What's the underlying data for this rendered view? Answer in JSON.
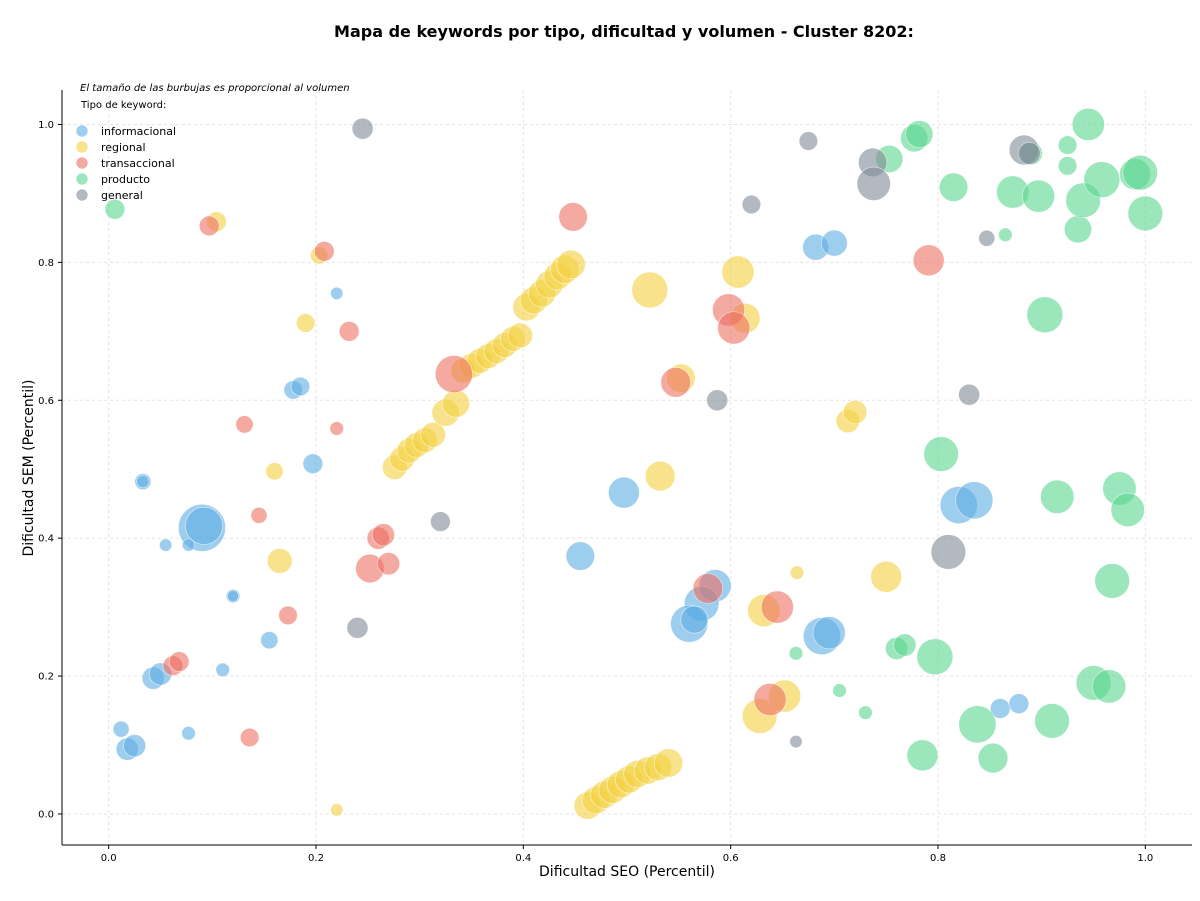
{
  "chart_data": {
    "type": "scatter",
    "title": "Mapa de keywords por tipo, dificultad y volumen - Cluster 8202:",
    "xlabel": "Dificultad SEO (Percentil)",
    "ylabel": "Dificultad SEM (Percentil)",
    "note": "El tamaño de las burbujas es proporcional al volumen",
    "legend_title": "Tipo de keyword:",
    "legend_position": "top-left",
    "grid": true,
    "xlim": [
      -0.045,
      1.045
    ],
    "ylim": [
      -0.045,
      1.05
    ],
    "xticks": [
      0.0,
      0.2,
      0.4,
      0.6,
      0.8,
      1.0
    ],
    "yticks": [
      0.0,
      0.2,
      0.4,
      0.6,
      0.8,
      1.0
    ],
    "xtick_labels": [
      "0.0",
      "0.2",
      "0.4",
      "0.6",
      "0.8",
      "1.0"
    ],
    "ytick_labels": [
      "0.0",
      "0.2",
      "0.4",
      "0.6",
      "0.8",
      "1.0"
    ],
    "size_unit": "volumen (relativo)",
    "series": [
      {
        "name": "informacional",
        "color": "#5DADE2",
        "points": [
          [
            0.09,
            0.415,
            3.8
          ],
          [
            0.092,
            0.418,
            3.0
          ],
          [
            0.033,
            0.482,
            1.3
          ],
          [
            0.033,
            0.482,
            1.0
          ],
          [
            0.055,
            0.39,
            1.0
          ],
          [
            0.077,
            0.39,
            1.0
          ],
          [
            0.12,
            0.316,
            1.1
          ],
          [
            0.12,
            0.316,
            0.9
          ],
          [
            0.178,
            0.615,
            1.5
          ],
          [
            0.185,
            0.62,
            1.5
          ],
          [
            0.197,
            0.508,
            1.6
          ],
          [
            0.22,
            0.755,
            1.0
          ],
          [
            0.155,
            0.252,
            1.4
          ],
          [
            0.11,
            0.209,
            1.1
          ],
          [
            0.043,
            0.197,
            1.8
          ],
          [
            0.05,
            0.203,
            1.8
          ],
          [
            0.012,
            0.123,
            1.3
          ],
          [
            0.018,
            0.094,
            1.8
          ],
          [
            0.025,
            0.099,
            1.8
          ],
          [
            0.077,
            0.117,
            1.1
          ],
          [
            0.455,
            0.374,
            2.3
          ],
          [
            0.497,
            0.466,
            2.5
          ],
          [
            0.585,
            0.331,
            2.6
          ],
          [
            0.572,
            0.305,
            2.8
          ],
          [
            0.56,
            0.276,
            3.0
          ],
          [
            0.565,
            0.282,
            2.2
          ],
          [
            0.688,
            0.258,
            3.0
          ],
          [
            0.695,
            0.263,
            2.6
          ],
          [
            0.682,
            0.822,
            2.1
          ],
          [
            0.7,
            0.828,
            2.1
          ],
          [
            0.82,
            0.448,
            3.0
          ],
          [
            0.835,
            0.455,
            3.0
          ],
          [
            0.86,
            0.153,
            1.6
          ],
          [
            0.878,
            0.16,
            1.6
          ]
        ]
      },
      {
        "name": "regional",
        "color": "#F4D03F",
        "points": [
          [
            0.104,
            0.859,
            1.6
          ],
          [
            0.19,
            0.712,
            1.5
          ],
          [
            0.203,
            0.81,
            1.4
          ],
          [
            0.16,
            0.497,
            1.4
          ],
          [
            0.165,
            0.367,
            2.0
          ],
          [
            0.22,
            0.006,
            1.0
          ],
          [
            0.276,
            0.503,
            2.0
          ],
          [
            0.283,
            0.515,
            2.0
          ],
          [
            0.29,
            0.527,
            2.0
          ],
          [
            0.297,
            0.535,
            2.0
          ],
          [
            0.305,
            0.542,
            2.0
          ],
          [
            0.313,
            0.55,
            2.0
          ],
          [
            0.325,
            0.582,
            2.2
          ],
          [
            0.335,
            0.595,
            2.2
          ],
          [
            0.342,
            0.643,
            2.0
          ],
          [
            0.35,
            0.65,
            2.0
          ],
          [
            0.358,
            0.657,
            2.0
          ],
          [
            0.366,
            0.664,
            2.0
          ],
          [
            0.374,
            0.671,
            2.0
          ],
          [
            0.382,
            0.68,
            2.0
          ],
          [
            0.39,
            0.689,
            2.0
          ],
          [
            0.397,
            0.694,
            2.0
          ],
          [
            0.403,
            0.735,
            2.2
          ],
          [
            0.41,
            0.745,
            2.2
          ],
          [
            0.418,
            0.755,
            2.2
          ],
          [
            0.425,
            0.768,
            2.2
          ],
          [
            0.433,
            0.78,
            2.2
          ],
          [
            0.44,
            0.79,
            2.3
          ],
          [
            0.446,
            0.797,
            2.3
          ],
          [
            0.462,
            0.012,
            2.2
          ],
          [
            0.47,
            0.02,
            2.2
          ],
          [
            0.478,
            0.028,
            2.2
          ],
          [
            0.486,
            0.035,
            2.2
          ],
          [
            0.494,
            0.043,
            2.2
          ],
          [
            0.502,
            0.05,
            2.2
          ],
          [
            0.51,
            0.058,
            2.2
          ],
          [
            0.52,
            0.063,
            2.2
          ],
          [
            0.53,
            0.068,
            2.2
          ],
          [
            0.54,
            0.074,
            2.3
          ],
          [
            0.522,
            0.76,
            2.9
          ],
          [
            0.552,
            0.632,
            2.3
          ],
          [
            0.532,
            0.49,
            2.4
          ],
          [
            0.607,
            0.786,
            2.6
          ],
          [
            0.614,
            0.719,
            2.4
          ],
          [
            0.628,
            0.142,
            2.8
          ],
          [
            0.632,
            0.295,
            2.6
          ],
          [
            0.652,
            0.171,
            2.6
          ],
          [
            0.664,
            0.35,
            1.1
          ],
          [
            0.713,
            0.57,
            1.9
          ],
          [
            0.72,
            0.583,
            1.9
          ],
          [
            0.75,
            0.344,
            2.5
          ]
        ]
      },
      {
        "name": "transaccional",
        "color": "#EC7063",
        "points": [
          [
            0.097,
            0.853,
            1.6
          ],
          [
            0.208,
            0.816,
            1.6
          ],
          [
            0.232,
            0.7,
            1.6
          ],
          [
            0.131,
            0.565,
            1.4
          ],
          [
            0.22,
            0.559,
            1.1
          ],
          [
            0.145,
            0.433,
            1.3
          ],
          [
            0.26,
            0.4,
            1.8
          ],
          [
            0.265,
            0.405,
            1.8
          ],
          [
            0.252,
            0.356,
            2.3
          ],
          [
            0.27,
            0.363,
            1.8
          ],
          [
            0.173,
            0.288,
            1.5
          ],
          [
            0.062,
            0.215,
            1.6
          ],
          [
            0.068,
            0.221,
            1.6
          ],
          [
            0.136,
            0.111,
            1.5
          ],
          [
            0.333,
            0.638,
            3.0
          ],
          [
            0.448,
            0.866,
            2.3
          ],
          [
            0.547,
            0.626,
            2.4
          ],
          [
            0.598,
            0.731,
            2.6
          ],
          [
            0.603,
            0.705,
            2.6
          ],
          [
            0.578,
            0.327,
            2.4
          ],
          [
            0.638,
            0.166,
            2.6
          ],
          [
            0.645,
            0.3,
            2.6
          ],
          [
            0.791,
            0.803,
            2.5
          ]
        ]
      },
      {
        "name": "producto",
        "color": "#58D68D",
        "points": [
          [
            0.006,
            0.877,
            1.6
          ],
          [
            0.663,
            0.233,
            1.1
          ],
          [
            0.705,
            0.179,
            1.1
          ],
          [
            0.73,
            0.147,
            1.1
          ],
          [
            0.76,
            0.24,
            1.8
          ],
          [
            0.768,
            0.245,
            1.8
          ],
          [
            0.785,
            0.085,
            2.5
          ],
          [
            0.797,
            0.228,
            2.9
          ],
          [
            0.803,
            0.522,
            2.8
          ],
          [
            0.838,
            0.13,
            3.0
          ],
          [
            0.853,
            0.081,
            2.4
          ],
          [
            0.777,
            0.98,
            2.2
          ],
          [
            0.782,
            0.986,
            2.2
          ],
          [
            0.753,
            0.95,
            2.2
          ],
          [
            0.815,
            0.909,
            2.3
          ],
          [
            0.865,
            0.84,
            1.1
          ],
          [
            0.872,
            0.902,
            2.6
          ],
          [
            0.897,
            0.896,
            2.6
          ],
          [
            0.89,
            0.958,
            1.8
          ],
          [
            0.925,
            0.97,
            1.5
          ],
          [
            0.925,
            0.94,
            1.5
          ],
          [
            0.903,
            0.724,
            2.9
          ],
          [
            0.91,
            0.135,
            2.8
          ],
          [
            0.915,
            0.46,
            2.7
          ],
          [
            0.935,
            0.848,
            2.2
          ],
          [
            0.94,
            0.89,
            2.8
          ],
          [
            0.945,
            1.0,
            2.6
          ],
          [
            0.958,
            0.92,
            2.9
          ],
          [
            0.968,
            0.338,
            2.8
          ],
          [
            0.975,
            0.472,
            2.7
          ],
          [
            0.983,
            0.441,
            2.7
          ],
          [
            0.95,
            0.19,
            2.8
          ],
          [
            0.965,
            0.185,
            2.7
          ],
          [
            0.99,
            0.928,
            2.5
          ],
          [
            0.995,
            0.93,
            2.8
          ],
          [
            1.0,
            0.871,
            2.8
          ]
        ]
      },
      {
        "name": "general",
        "color": "#808B96",
        "points": [
          [
            0.245,
            0.994,
            1.7
          ],
          [
            0.24,
            0.27,
            1.7
          ],
          [
            0.32,
            0.424,
            1.6
          ],
          [
            0.587,
            0.6,
            1.7
          ],
          [
            0.62,
            0.884,
            1.5
          ],
          [
            0.663,
            0.105,
            1.0
          ],
          [
            0.675,
            0.976,
            1.5
          ],
          [
            0.737,
            0.945,
            2.3
          ],
          [
            0.738,
            0.914,
            2.7
          ],
          [
            0.81,
            0.38,
            2.8
          ],
          [
            0.83,
            0.608,
            1.7
          ],
          [
            0.847,
            0.835,
            1.3
          ],
          [
            0.883,
            0.963,
            2.4
          ],
          [
            0.888,
            0.958,
            1.8
          ]
        ]
      }
    ]
  }
}
